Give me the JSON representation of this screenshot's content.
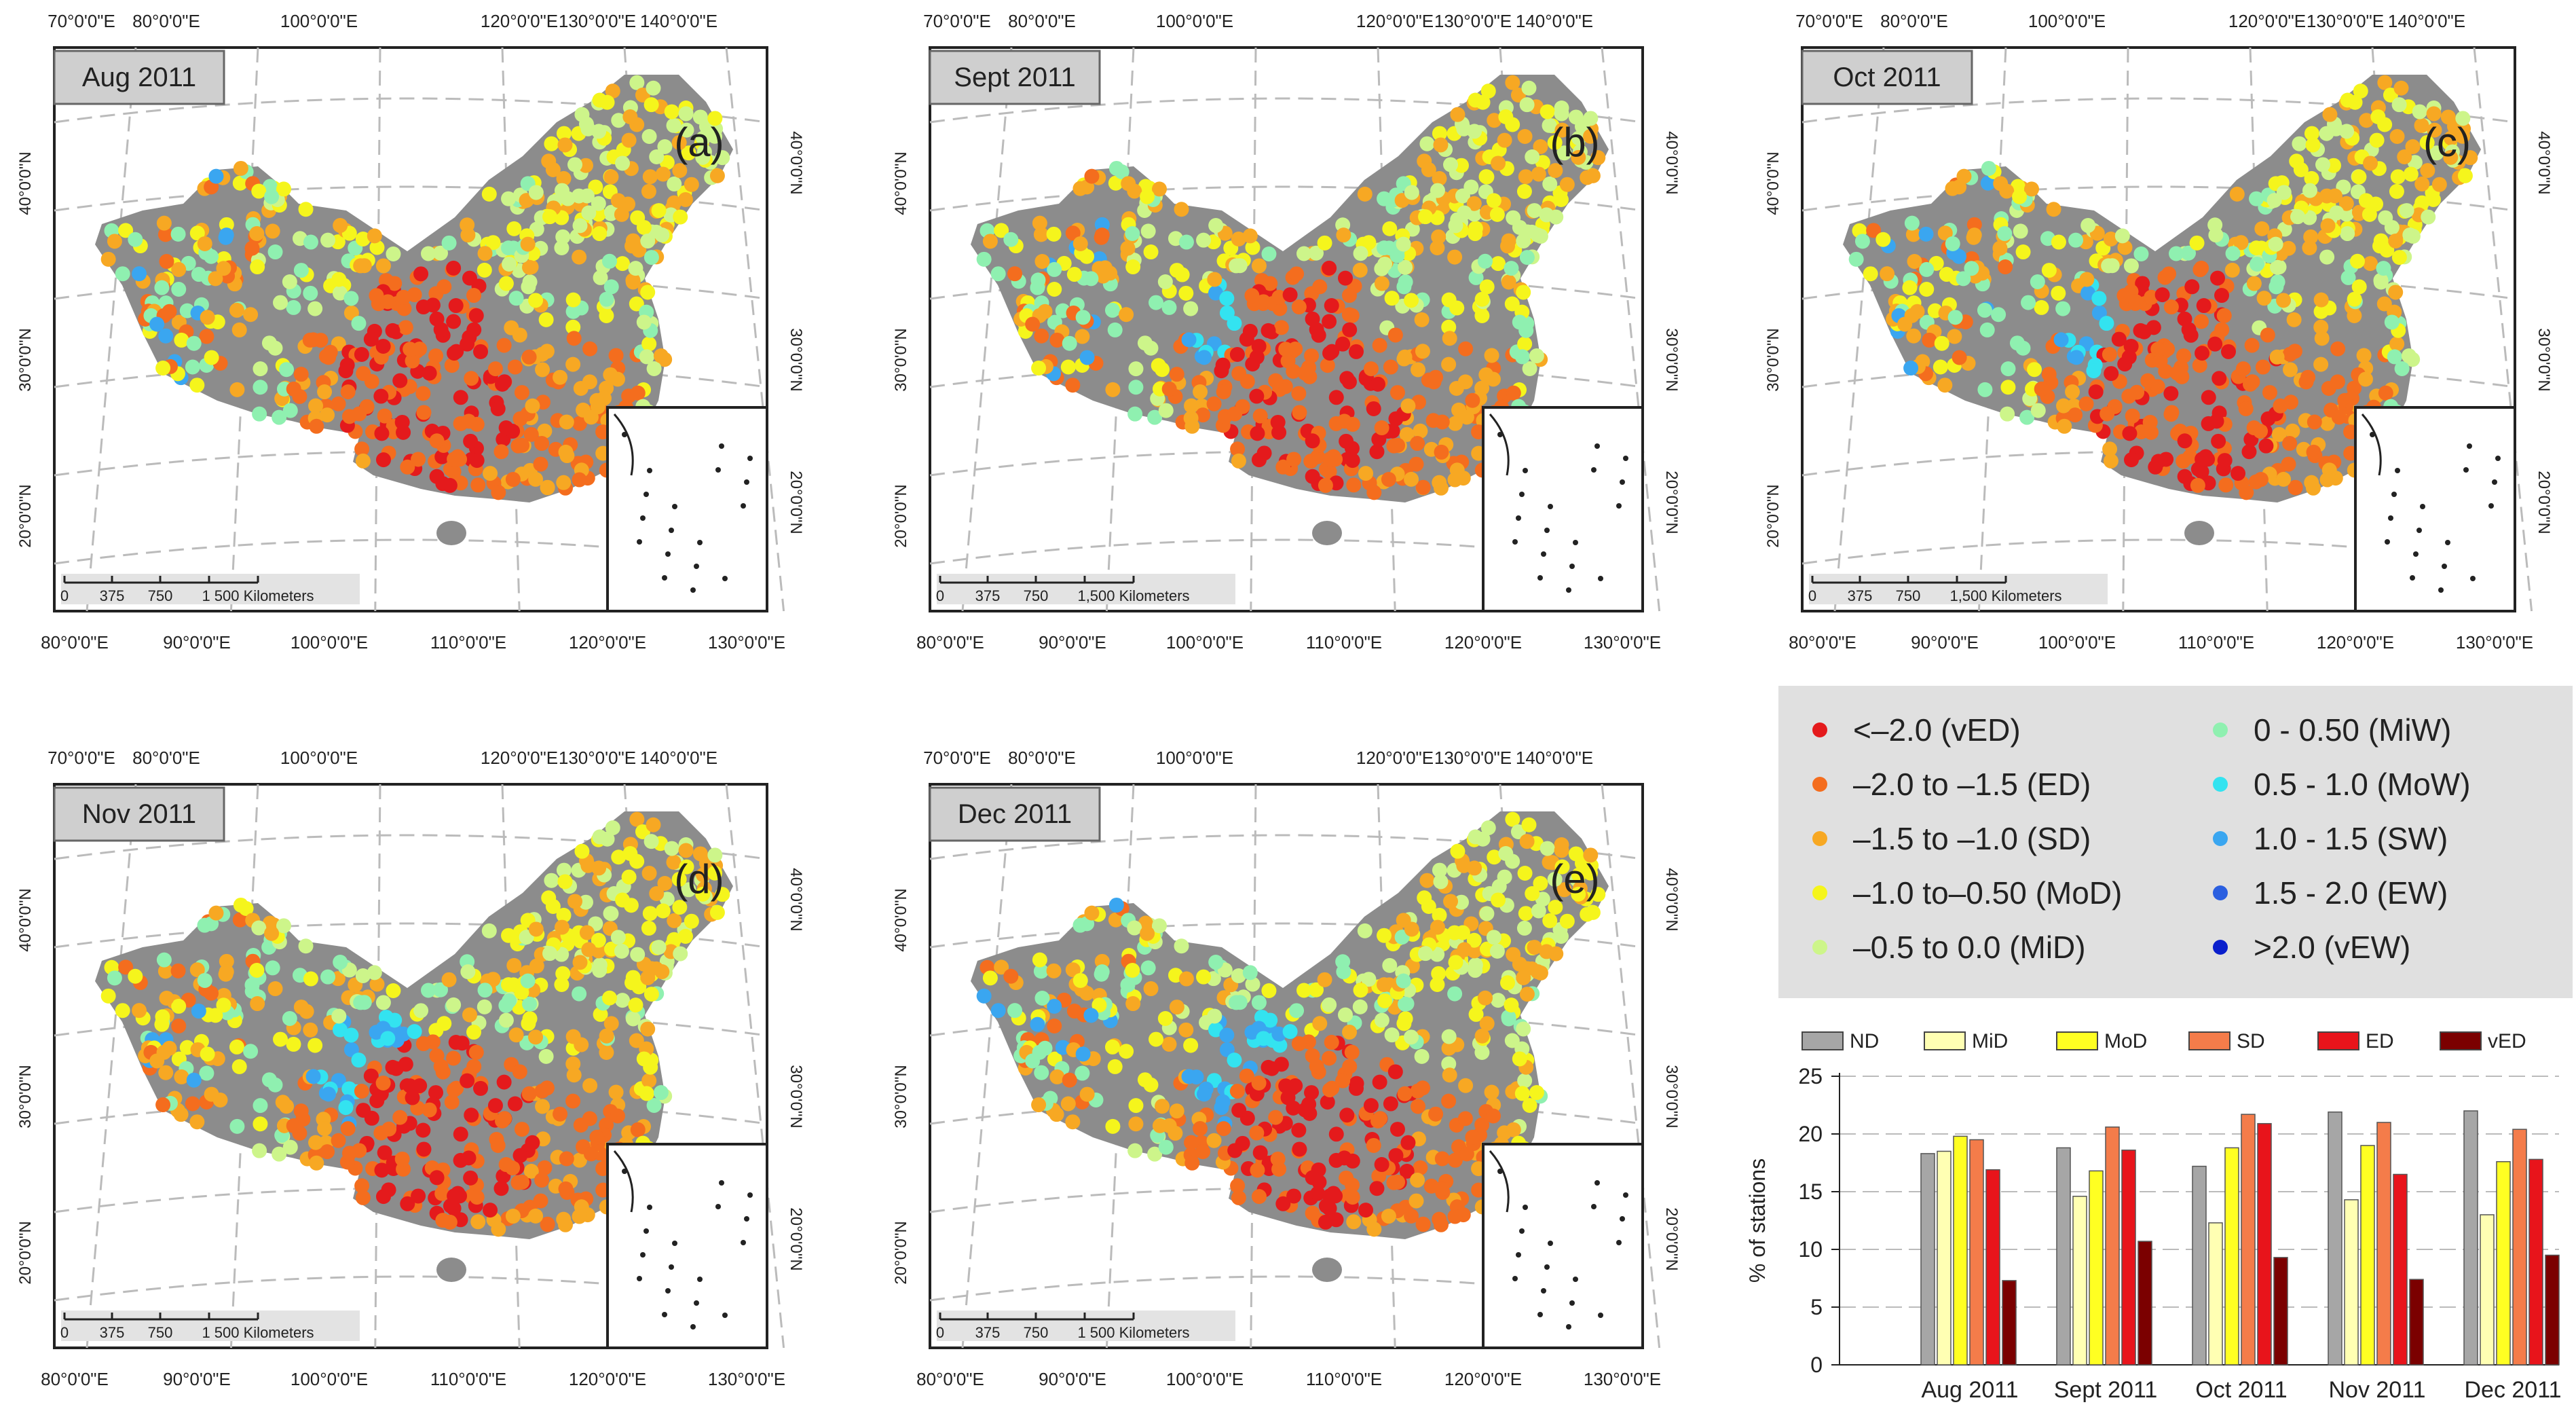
{
  "panels": [
    {
      "date": "Aug 2011",
      "label": "(a)",
      "scale": "1 500 Kilometers"
    },
    {
      "date": "Sept 2011",
      "label": "(b)",
      "scale": "1,500 Kilometers"
    },
    {
      "date": "Oct 2011",
      "label": "(c)",
      "scale": "1,500 Kilometers"
    },
    {
      "date": "Nov 2011",
      "label": "(d)",
      "scale": "1 500 Kilometers"
    },
    {
      "date": "Dec 2011",
      "label": "(e)",
      "scale": "1 500 Kilometers"
    }
  ],
  "scale_ticks": [
    "0",
    "375",
    "750"
  ],
  "top_axis": [
    "70°0'0\"E",
    "80°0'0\"E",
    "100°0'0\"E",
    "120°0'0\"E",
    "130°0'0\"E",
    "140°0'0\"E"
  ],
  "bottom_axis": [
    "80°0'0\"E",
    "90°0'0\"E",
    "100°0'0\"E",
    "110°0'0\"E",
    "120°0'0\"E",
    "130°0'0\"E"
  ],
  "left_axis": [
    "40°0'0\"N",
    "30°0'0\"N",
    "20°0'0\"N"
  ],
  "right_axis": [
    "40°0'0\"N",
    "30°0'0\"N",
    "20°0'0\"N"
  ],
  "legend": [
    {
      "text": "<–2.0 (vED)",
      "color": "#e41a1c"
    },
    {
      "text": "–2.0  to –1.5 (ED)",
      "color": "#f46d1e"
    },
    {
      "text": "–1.5 to –1.0 (SD)",
      "color": "#f7a823"
    },
    {
      "text": "–1.0 to–0.50 (MoD)",
      "color": "#f5f51c"
    },
    {
      "text": "–0.5 to 0.0 (MiD)",
      "color": "#cdf58a"
    },
    {
      "text": "0 - 0.50 (MiW)",
      "color": "#8ff0b0"
    },
    {
      "text": "0.5 - 1.0 (MoW)",
      "color": "#33e3f0"
    },
    {
      "text": "1.0 - 1.5 (SW)",
      "color": "#3aa6f0"
    },
    {
      "text": "1.5 - 2.0 (EW)",
      "color": "#2b5fe0"
    },
    {
      "text": ">2.0 (vEW)",
      "color": "#0a1fcc"
    }
  ],
  "chart_data": {
    "type": "bar",
    "title": "",
    "xlabel": "",
    "ylabel": "% of stations",
    "ylim": [
      0,
      25
    ],
    "yticks": [
      0,
      5,
      10,
      15,
      20,
      25
    ],
    "grid": "horizontal dashed",
    "legend_position": "top",
    "categories": [
      "Aug 2011",
      "Sept 2011",
      "Oct 2011",
      "Nov 2011",
      "Dec 2011"
    ],
    "series": [
      {
        "name": "ND",
        "color": "#a6a6a6",
        "values": [
          18.3,
          18.8,
          17.2,
          21.9,
          22.0
        ]
      },
      {
        "name": "MiD",
        "color": "#ffffb3",
        "values": [
          18.5,
          14.6,
          12.3,
          14.3,
          13.0
        ]
      },
      {
        "name": "MoD",
        "color": "#ffff22",
        "values": [
          19.8,
          16.8,
          18.8,
          19.0,
          17.6
        ]
      },
      {
        "name": "SD",
        "color": "#f47c4a",
        "values": [
          19.5,
          20.6,
          21.7,
          21.0,
          20.4
        ]
      },
      {
        "name": "ED",
        "color": "#e8141b",
        "values": [
          16.9,
          18.6,
          20.9,
          16.5,
          17.8
        ]
      },
      {
        "name": "vED",
        "color": "#7b0000",
        "values": [
          7.3,
          10.7,
          9.3,
          7.4,
          9.5
        ]
      }
    ]
  }
}
